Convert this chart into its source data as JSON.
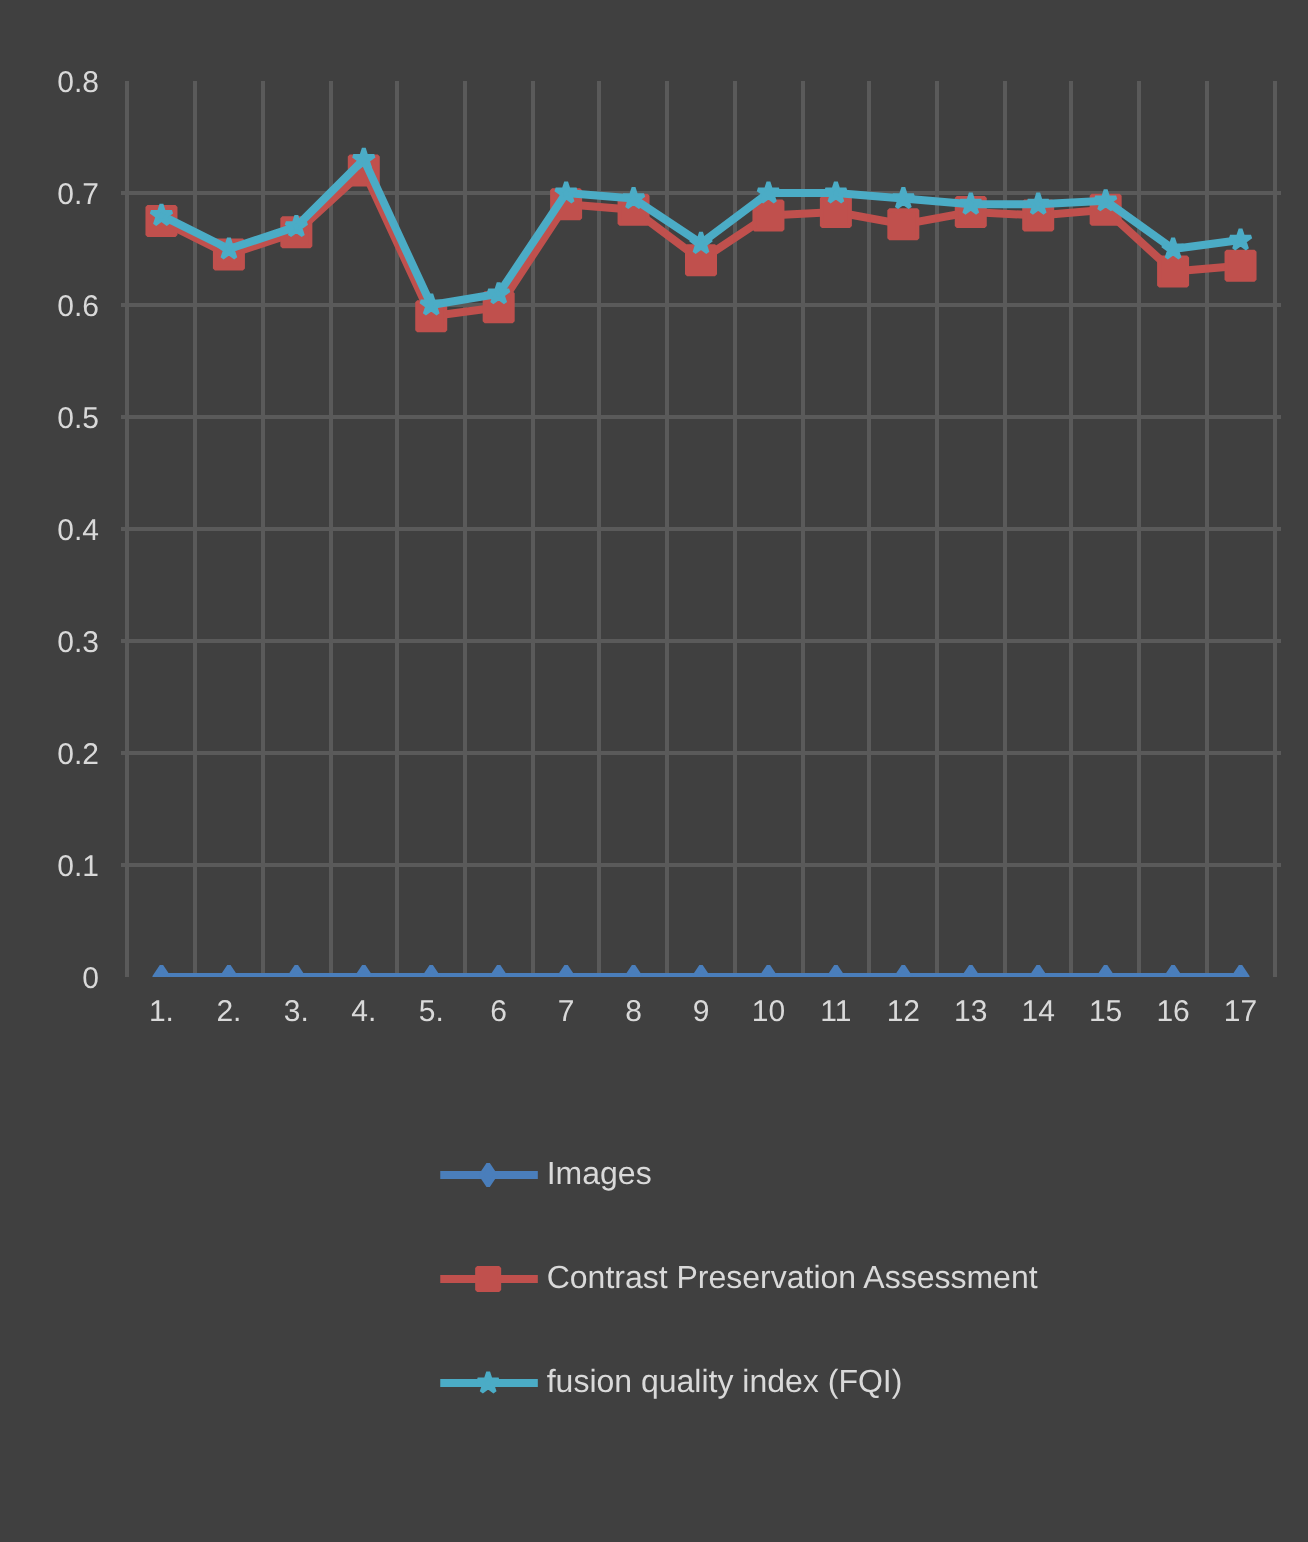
{
  "chart_data": {
    "type": "line",
    "categories": [
      "1.",
      "2.",
      "3.",
      "4.",
      "5.",
      "6",
      "7",
      "8",
      "9",
      "10",
      "11",
      "12",
      "13",
      "14",
      "15",
      "16",
      "17"
    ],
    "series": [
      {
        "name": "Images",
        "color": "#4a7ebb",
        "marker": "diamond",
        "values": [
          0,
          0,
          0,
          0,
          0,
          0,
          0,
          0,
          0,
          0,
          0,
          0,
          0,
          0,
          0,
          0,
          0
        ]
      },
      {
        "name": "Contrast Preservation Assessment",
        "color": "#c0504d",
        "marker": "square",
        "values": [
          0.675,
          0.645,
          0.665,
          0.72,
          0.59,
          0.598,
          0.69,
          0.685,
          0.64,
          0.68,
          0.683,
          0.672,
          0.683,
          0.68,
          0.685,
          0.63,
          0.635
        ]
      },
      {
        "name": "fusion quality index (FQI)",
        "color": "#4bacc6",
        "marker": "star",
        "values": [
          0.68,
          0.65,
          0.67,
          0.73,
          0.6,
          0.61,
          0.7,
          0.695,
          0.655,
          0.7,
          0.7,
          0.695,
          0.69,
          0.69,
          0.693,
          0.65,
          0.658
        ]
      }
    ],
    "ylim": [
      0,
      0.8
    ],
    "yticks": [
      0,
      0.1,
      0.2,
      0.3,
      0.4,
      0.5,
      0.6,
      0.7,
      0.8
    ],
    "grid": true,
    "legend": "bottom",
    "line_style": "solid"
  }
}
